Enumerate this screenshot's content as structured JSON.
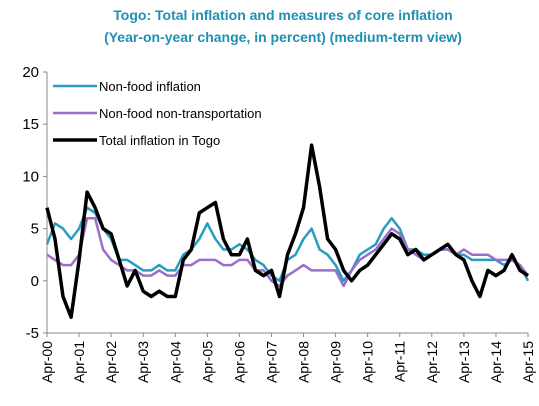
{
  "chart_data": {
    "type": "line",
    "title": "Togo: Total inflation and measures of core inflation",
    "subtitle": "(Year-on-year change, in percent) (medium-term view)",
    "categories": [
      "Apr-00",
      null,
      null,
      null,
      "Apr-01",
      null,
      null,
      null,
      "Apr-02",
      null,
      null,
      null,
      "Apr-03",
      null,
      null,
      null,
      "Apr-04",
      null,
      null,
      null,
      "Apr-05",
      null,
      null,
      null,
      "Apr-06",
      null,
      null,
      null,
      "Apr-07",
      null,
      null,
      null,
      "Apr-08",
      null,
      null,
      null,
      "Apr-09",
      null,
      null,
      null,
      "Apr-10",
      null,
      null,
      null,
      "Apr-11",
      null,
      null,
      null,
      "Apr-12",
      null,
      null,
      null,
      "Apr-13",
      null,
      null,
      null,
      "Apr-14",
      null,
      null,
      null,
      "Apr-15"
    ],
    "series": [
      {
        "name": "Non-food inflation",
        "color": "#2a9cc2",
        "values": [
          3.5,
          5.5,
          5,
          4,
          5,
          7,
          6.5,
          5,
          4,
          2,
          2,
          1.5,
          1,
          1,
          1.5,
          1,
          1,
          2.5,
          3,
          4,
          5.5,
          4,
          3,
          3,
          3.5,
          3,
          2,
          1.5,
          0.5,
          0,
          2,
          2.5,
          4,
          5,
          3,
          2.5,
          1.5,
          0,
          1,
          2.5,
          3,
          3.5,
          5,
          6,
          5,
          3,
          3,
          2.5,
          2.5,
          3,
          3,
          2.5,
          2.5,
          2,
          2,
          2,
          2,
          1.5,
          2,
          1.5,
          0
        ]
      },
      {
        "name": "Non-food non-transportation",
        "color": "#9b6fc8",
        "values": [
          2.5,
          2,
          1.5,
          1.5,
          2.5,
          6,
          6,
          3,
          2,
          1.5,
          1,
          1,
          0.5,
          0.5,
          1,
          0.5,
          0.5,
          1.5,
          1.5,
          2,
          2,
          2,
          1.5,
          1.5,
          2,
          2,
          1,
          1,
          0,
          -0.5,
          0.5,
          1,
          1.5,
          1,
          1,
          1,
          1,
          -0.5,
          1,
          2,
          2.5,
          3,
          4,
          5,
          4.5,
          3,
          2.5,
          2,
          2.5,
          3,
          3,
          2.5,
          3,
          2.5,
          2.5,
          2.5,
          2,
          2,
          2,
          1.5,
          0.5
        ]
      },
      {
        "name": "Total inflation in Togo",
        "color": "#000000",
        "values": [
          7,
          4,
          -1.5,
          -3.5,
          2,
          8.5,
          7,
          5,
          4.5,
          2,
          -0.5,
          1,
          -1,
          -1.5,
          -1,
          -1.5,
          -1.5,
          2,
          3,
          6.5,
          7,
          7.5,
          4,
          2.5,
          2.5,
          4,
          1,
          0.5,
          1,
          -1.5,
          2.5,
          4.5,
          7,
          13,
          9,
          4,
          3,
          1,
          0,
          1,
          1.5,
          2.5,
          3.5,
          4.5,
          4,
          2.5,
          3,
          2,
          2.5,
          3,
          3.5,
          2.5,
          2,
          0,
          -1.5,
          1,
          0.5,
          1,
          2.5,
          1,
          0.5
        ]
      }
    ],
    "ylim": [
      -5,
      20
    ],
    "yticks": [
      -5,
      0,
      5,
      10,
      15,
      20
    ],
    "legend": "upper left"
  }
}
